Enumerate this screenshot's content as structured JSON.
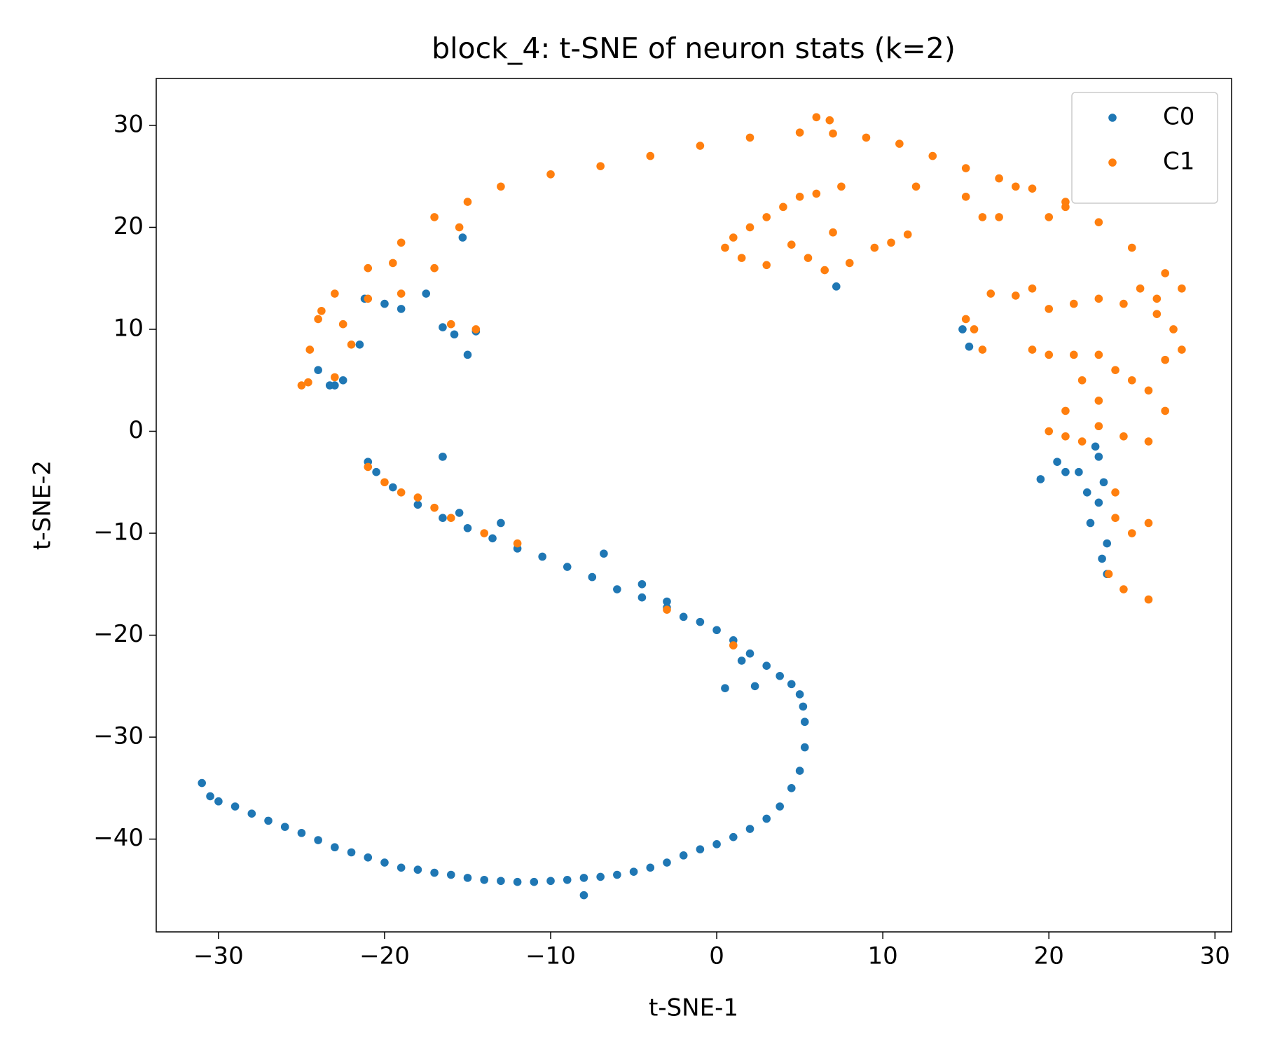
{
  "chart_data": {
    "type": "scatter",
    "title": "block_4: t-SNE of neuron stats (k=2)",
    "x_label": "t-SNE-1",
    "y_label": "t-SNE-2",
    "xlim": [
      -33.75,
      31.0
    ],
    "ylim": [
      -49.1,
      34.6
    ],
    "xticks": [
      {
        "value": -30,
        "label": "−30"
      },
      {
        "value": -20,
        "label": "−20"
      },
      {
        "value": -10,
        "label": "−10"
      },
      0,
      10,
      20,
      30
    ],
    "yticks": [
      {
        "value": -40,
        "label": "−40"
      },
      {
        "value": -30,
        "label": "−30"
      },
      {
        "value": -20,
        "label": "−20"
      },
      {
        "value": -10,
        "label": "−10"
      },
      0,
      10,
      20,
      30
    ],
    "legend": "upper right",
    "series": [
      {
        "name": "C0",
        "color": "#1f77b4",
        "x": [
          -31,
          -30.5,
          -30,
          -29,
          -28,
          -27,
          -26,
          -25,
          -24,
          -23,
          -22,
          -21,
          -20,
          -19,
          -18,
          -17,
          -16,
          -15,
          -14,
          -13,
          -12,
          -11,
          -10,
          -9,
          -8,
          -7,
          -6,
          -5,
          -4,
          -3,
          -2,
          -1,
          0,
          1,
          2,
          3,
          3.8,
          4.5,
          5,
          5.3,
          5.3,
          5.2,
          5,
          4.5,
          3.8,
          3,
          2,
          1,
          0,
          -1,
          -2,
          -3,
          -4.5,
          -6,
          -7.5,
          -9,
          -10.5,
          -12,
          -13.5,
          -15,
          -16.5,
          -18,
          -19.5,
          -20.5,
          -21,
          -8,
          -6.8,
          -4.5,
          -3,
          0.5,
          1.5,
          2.3,
          -13,
          -15.5,
          -16.5,
          -23.3,
          -24,
          -23,
          -22.5,
          -21.5,
          -21.2,
          -20,
          -19,
          -17.5,
          -16.5,
          -15.8,
          -14.5,
          -15,
          -15.3,
          7.2,
          14.8,
          15.2,
          20.5,
          21,
          21.8,
          22.3,
          22.5,
          23,
          23.5,
          23.2,
          23.3,
          23,
          22.8,
          19.5,
          23.5,
          -16.5
        ],
        "y": [
          -34.5,
          -35.8,
          -36.3,
          -36.8,
          -37.5,
          -38.2,
          -38.8,
          -39.4,
          -40.1,
          -40.8,
          -41.3,
          -41.8,
          -42.3,
          -42.8,
          -43,
          -43.3,
          -43.5,
          -43.8,
          -44,
          -44.1,
          -44.2,
          -44.2,
          -44.1,
          -44,
          -43.8,
          -43.7,
          -43.5,
          -43.2,
          -42.8,
          -42.3,
          -41.6,
          -41,
          -40.5,
          -39.8,
          -39,
          -38,
          -36.8,
          -35,
          -33.3,
          -31,
          -28.5,
          -27,
          -25.8,
          -24.8,
          -24,
          -23,
          -21.8,
          -20.5,
          -19.5,
          -18.7,
          -18.2,
          -17.3,
          -16.3,
          -15.5,
          -14.3,
          -13.3,
          -12.3,
          -11.5,
          -10.5,
          -9.5,
          -8.5,
          -7.2,
          -5.5,
          -4,
          -3,
          -45.5,
          -12,
          -15,
          -16.7,
          -25.2,
          -22.5,
          -25,
          -9,
          -8,
          -2.5,
          4.5,
          6,
          4.5,
          5,
          8.5,
          13,
          12.5,
          12,
          13.5,
          10.2,
          9.5,
          9.8,
          7.5,
          19,
          14.2,
          10,
          8.3,
          -3,
          -4,
          -4,
          -6,
          -9,
          -7,
          -11,
          -12.5,
          -5,
          -2.5,
          -1.5,
          -4.7,
          -14,
          -2.5
        ]
      },
      {
        "name": "C1",
        "color": "#ff7f0e",
        "x": [
          -25,
          -24.5,
          -24,
          -23,
          -21,
          -19,
          -17,
          -15,
          -13,
          -10,
          -7,
          -4,
          -1,
          2,
          5,
          7,
          9,
          11,
          13,
          15,
          17,
          19,
          21,
          23,
          25,
          27,
          28,
          0.5,
          1,
          2,
          3,
          4,
          5,
          6,
          1.5,
          3,
          4.5,
          5.5,
          6.5,
          7,
          8,
          9.5,
          10.5,
          11.5,
          12,
          15,
          16,
          17,
          18,
          20,
          21,
          16.5,
          18,
          19,
          20,
          21.5,
          23,
          15,
          15.5,
          16,
          19,
          20,
          21.5,
          23,
          24,
          25,
          26,
          27,
          28,
          27.5,
          26.5,
          24.5,
          25.5,
          26.5,
          22,
          23,
          21,
          20,
          21,
          22,
          23,
          24.5,
          26,
          27,
          24,
          24,
          25,
          26,
          23.6,
          24.5,
          26,
          -22,
          -21,
          -19,
          -17,
          -15.5,
          -19.5,
          -22.5,
          -23,
          -16,
          -14.5,
          -21,
          -20,
          -19,
          -18,
          -17,
          -16,
          -14,
          -12,
          -3,
          1,
          6,
          6.8,
          7.5,
          -24.6,
          -23.8
        ],
        "y": [
          4.5,
          8,
          11,
          13.5,
          16,
          18.5,
          21,
          22.5,
          24,
          25.2,
          26,
          27,
          28,
          28.8,
          29.3,
          29.2,
          28.8,
          28.2,
          27,
          25.8,
          24.8,
          23.8,
          22.5,
          20.5,
          18,
          15.5,
          14,
          18,
          19,
          20,
          21,
          22,
          23,
          23.3,
          17,
          16.3,
          18.3,
          17,
          15.8,
          19.5,
          16.5,
          18,
          18.5,
          19.3,
          24,
          23,
          21,
          21,
          24,
          21,
          22,
          13.5,
          13.3,
          14,
          12,
          12.5,
          13,
          11,
          10,
          8,
          8,
          7.5,
          7.5,
          7.5,
          6,
          5,
          4,
          7,
          8,
          10,
          11.5,
          12.5,
          14,
          13,
          5,
          3,
          2,
          0,
          -0.5,
          -1,
          0.5,
          -0.5,
          -1,
          2,
          -6,
          -8.5,
          -10,
          -9,
          -14,
          -15.5,
          -16.5,
          8.5,
          13,
          13.5,
          16,
          20,
          16.5,
          10.5,
          5.3,
          10.5,
          10,
          -3.5,
          -5,
          -6,
          -6.5,
          -7.5,
          -8.5,
          -10,
          -11,
          -17.5,
          -21,
          30.8,
          30.5,
          24,
          4.8,
          11.8
        ]
      }
    ]
  }
}
